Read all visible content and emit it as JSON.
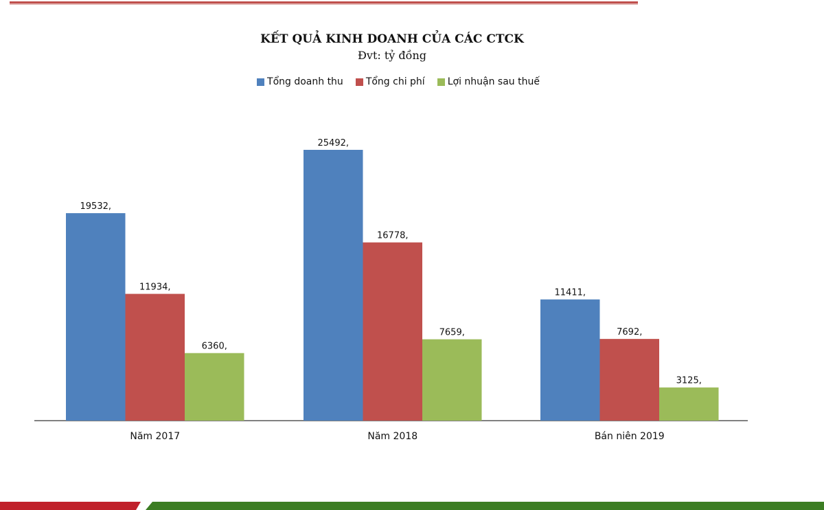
{
  "chart_data": {
    "type": "bar",
    "title": "KẾT QUẢ KINH DOANH CỦA CÁC CTCK",
    "subtitle": "Đvt: tỷ đồng",
    "categories": [
      "Năm 2017",
      "Năm 2018",
      "Bán niên 2019"
    ],
    "series": [
      {
        "name": "Tổng doanh thu",
        "color": "#4f81bd",
        "values": [
          19532,
          25492,
          11411
        ],
        "labels": [
          "19532,",
          "25492,",
          "11411,"
        ]
      },
      {
        "name": "Tổng chi phí",
        "color": "#c0504d",
        "values": [
          11934,
          16778,
          7692
        ],
        "labels": [
          "11934,",
          "16778,",
          "7692,"
        ]
      },
      {
        "name": "Lợi nhuận sau thuế",
        "color": "#9bbb59",
        "values": [
          6360,
          7659,
          3125
        ],
        "labels": [
          "6360,",
          "7659,",
          "3125,"
        ]
      }
    ],
    "xlabel": "",
    "ylabel": "",
    "ylim": [
      0,
      27000
    ],
    "grid": false,
    "legend": "top-center"
  },
  "colors": {
    "top_rule": "#c0504d",
    "footer_red": "#c0202a",
    "footer_green": "#3c7d23"
  }
}
